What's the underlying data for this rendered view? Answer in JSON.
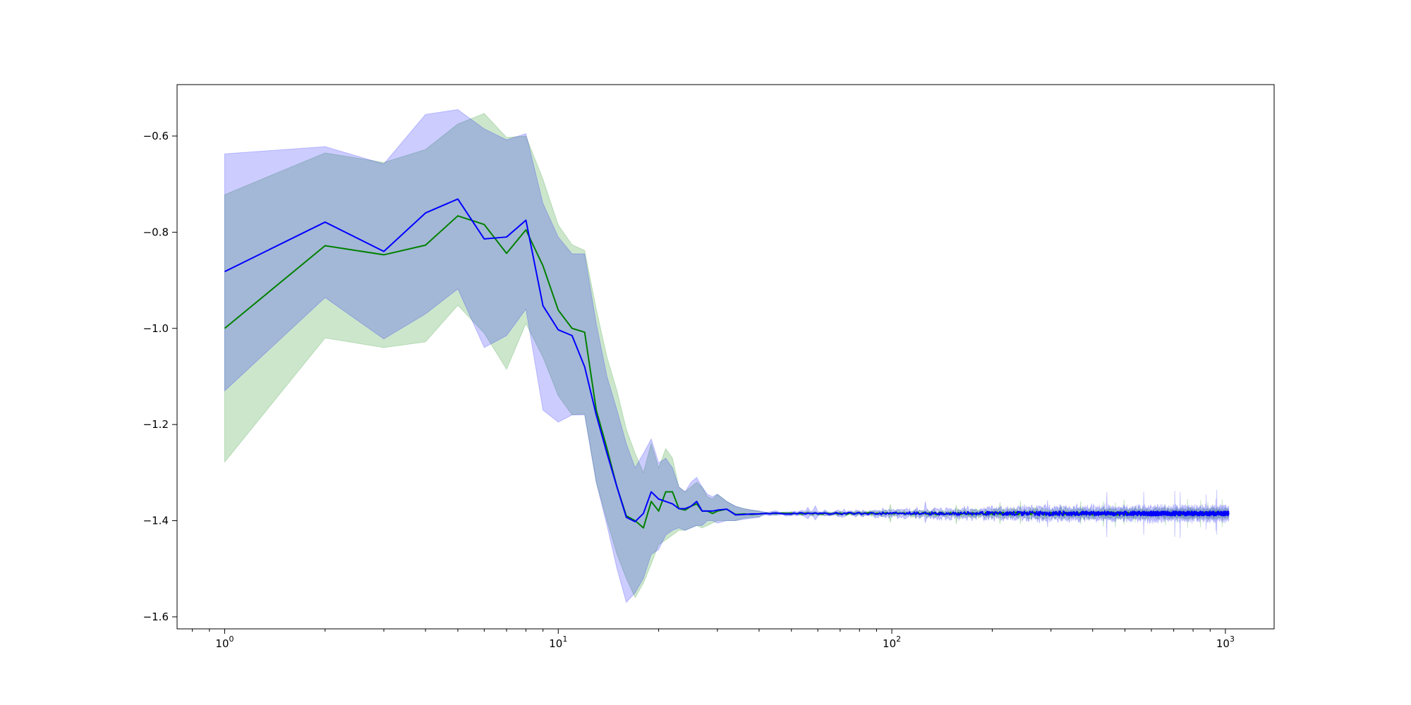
{
  "chart_data": {
    "type": "line",
    "title": "",
    "xlabel": "",
    "ylabel": "",
    "xscale": "log",
    "xlim": [
      0.72,
      1400
    ],
    "ylim": [
      -1.625,
      -0.493
    ],
    "grid": false,
    "legend": "none",
    "x_ticks": [
      {
        "value": 1,
        "base": "10",
        "exp": "0"
      },
      {
        "value": 10,
        "base": "10",
        "exp": "1"
      },
      {
        "value": 100,
        "base": "10",
        "exp": "2"
      },
      {
        "value": 1000,
        "base": "10",
        "exp": "3"
      }
    ],
    "y_ticks": [
      {
        "value": -0.6,
        "label": "−0.6"
      },
      {
        "value": -0.8,
        "label": "−0.8"
      },
      {
        "value": -1.0,
        "label": "−1.0"
      },
      {
        "value": -1.2,
        "label": "−1.2"
      },
      {
        "value": -1.4,
        "label": "−1.4"
      },
      {
        "value": -1.6,
        "label": "−1.6"
      }
    ],
    "tail": {
      "x_start": 40,
      "x_end": 1024,
      "y_center": -1.385
    },
    "series": [
      {
        "color": "#008000",
        "band_color": "#008000",
        "band_opacity": 0.2,
        "tail_noise": 0.008,
        "x": [
          1,
          2,
          3,
          4,
          5,
          6,
          7,
          8,
          9,
          10,
          11,
          12,
          13,
          14,
          15,
          16,
          17,
          18,
          19,
          20,
          21,
          22,
          23,
          24,
          25,
          26,
          27,
          28,
          29,
          30,
          32,
          34,
          36,
          38,
          40
        ],
        "y": [
          -1.0,
          -0.828,
          -0.847,
          -0.827,
          -0.766,
          -0.784,
          -0.844,
          -0.795,
          -0.87,
          -0.962,
          -1.0,
          -1.008,
          -1.17,
          -1.25,
          -1.33,
          -1.39,
          -1.4,
          -1.415,
          -1.36,
          -1.38,
          -1.34,
          -1.34,
          -1.375,
          -1.378,
          -1.37,
          -1.365,
          -1.38,
          -1.38,
          -1.385,
          -1.38,
          -1.376,
          -1.387,
          -1.386,
          -1.387,
          -1.386
        ],
        "lower": [
          -1.278,
          -1.02,
          -1.04,
          -1.028,
          -0.952,
          -1.01,
          -1.085,
          -0.99,
          -1.06,
          -1.14,
          -1.18,
          -1.178,
          -1.32,
          -1.4,
          -1.47,
          -1.52,
          -1.56,
          -1.53,
          -1.49,
          -1.45,
          -1.44,
          -1.43,
          -1.42,
          -1.42,
          -1.415,
          -1.41,
          -1.415,
          -1.41,
          -1.405,
          -1.4,
          -1.4,
          -1.4,
          -1.395,
          -1.393,
          -1.392
        ],
        "upper": [
          -0.722,
          -0.635,
          -0.655,
          -0.628,
          -0.575,
          -0.553,
          -0.603,
          -0.6,
          -0.69,
          -0.785,
          -0.826,
          -0.838,
          -0.96,
          -1.06,
          -1.13,
          -1.21,
          -1.26,
          -1.3,
          -1.24,
          -1.29,
          -1.25,
          -1.27,
          -1.33,
          -1.34,
          -1.33,
          -1.32,
          -1.33,
          -1.35,
          -1.355,
          -1.345,
          -1.36,
          -1.37,
          -1.375,
          -1.378,
          -1.38
        ]
      },
      {
        "color": "#0000ff",
        "band_color": "#0000ff",
        "band_opacity": 0.2,
        "tail_noise": 0.012,
        "x": [
          1,
          2,
          3,
          4,
          5,
          6,
          7,
          8,
          9,
          10,
          11,
          12,
          13,
          14,
          15,
          16,
          17,
          18,
          19,
          20,
          21,
          22,
          23,
          24,
          25,
          26,
          27,
          28,
          29,
          30,
          32,
          34,
          36,
          38,
          40
        ],
        "y": [
          -0.882,
          -0.779,
          -0.84,
          -0.76,
          -0.731,
          -0.814,
          -0.81,
          -0.775,
          -0.953,
          -1.003,
          -1.015,
          -1.08,
          -1.18,
          -1.26,
          -1.33,
          -1.393,
          -1.402,
          -1.385,
          -1.34,
          -1.355,
          -1.36,
          -1.365,
          -1.375,
          -1.375,
          -1.37,
          -1.36,
          -1.38,
          -1.38,
          -1.38,
          -1.378,
          -1.376,
          -1.388,
          -1.387,
          -1.386,
          -1.386
        ],
        "lower": [
          -1.13,
          -0.936,
          -1.022,
          -0.97,
          -0.918,
          -1.04,
          -1.015,
          -0.96,
          -1.17,
          -1.195,
          -1.18,
          -1.18,
          -1.32,
          -1.41,
          -1.5,
          -1.57,
          -1.55,
          -1.52,
          -1.47,
          -1.46,
          -1.43,
          -1.42,
          -1.415,
          -1.42,
          -1.415,
          -1.41,
          -1.41,
          -1.4,
          -1.4,
          -1.405,
          -1.4,
          -1.4,
          -1.397,
          -1.395,
          -1.393
        ],
        "upper": [
          -0.637,
          -0.622,
          -0.658,
          -0.555,
          -0.545,
          -0.585,
          -0.608,
          -0.595,
          -0.74,
          -0.81,
          -0.845,
          -0.845,
          -0.99,
          -1.1,
          -1.17,
          -1.24,
          -1.29,
          -1.26,
          -1.23,
          -1.28,
          -1.27,
          -1.29,
          -1.33,
          -1.34,
          -1.32,
          -1.31,
          -1.33,
          -1.345,
          -1.35,
          -1.345,
          -1.36,
          -1.37,
          -1.375,
          -1.378,
          -1.38
        ]
      }
    ]
  }
}
